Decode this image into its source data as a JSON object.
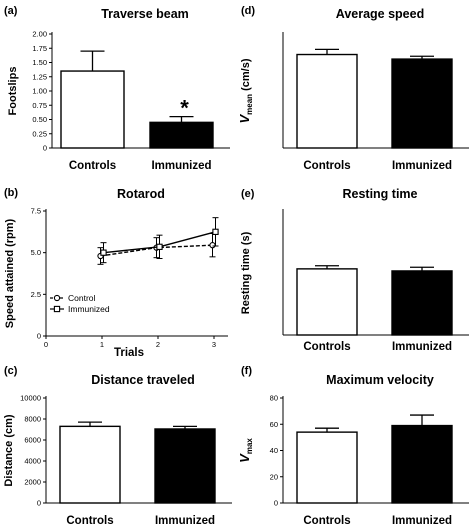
{
  "charts": [
    {
      "panel_label": "(a)",
      "type": "bar",
      "title": "Traverse beam",
      "ylabel": "Footslips",
      "xlabel": "",
      "categories": [
        "Controls",
        "Immunized"
      ],
      "values": [
        1.35,
        0.45
      ],
      "errors": [
        0.35,
        0.1
      ],
      "colors": [
        "#ffffff",
        "#000000"
      ],
      "ylim": [
        0,
        2.0
      ],
      "yticks": [
        "0",
        "0.25",
        "0.50",
        "0.75",
        "1.00",
        "1.25",
        "1.50",
        "1.75",
        "2.00"
      ],
      "significance": [
        "",
        "*"
      ]
    },
    {
      "panel_label": "(d)",
      "type": "bar",
      "title": "Average speed",
      "ylabel_main": "V",
      "ylabel_sub": "mean",
      "ylabel_unit": " (cm/s)",
      "xlabel": "",
      "categories": [
        "Controls",
        "Immunized"
      ],
      "values": [
        8.2,
        7.8
      ],
      "errors": [
        0.45,
        0.25
      ],
      "colors": [
        "#ffffff",
        "#000000"
      ],
      "ylim": [
        0,
        10
      ]
    },
    {
      "panel_label": "(b)",
      "type": "line",
      "title": "Rotarod",
      "ylabel": "Speed attained (rpm)",
      "xlabel": "Trials",
      "x": [
        1,
        2,
        3
      ],
      "xlim": [
        0,
        3.25
      ],
      "xticks": [
        "0",
        "1",
        "2",
        "3"
      ],
      "ylim": [
        0,
        7.5
      ],
      "yticks": [
        "0",
        "2.5",
        "5.0",
        "7.5"
      ],
      "series": [
        {
          "name": "Control",
          "values": [
            4.8,
            5.3,
            5.45
          ],
          "errors": [
            0.5,
            0.6,
            0.7
          ],
          "marker": "circle",
          "dash": true
        },
        {
          "name": "Immunized",
          "values": [
            5.0,
            5.35,
            6.25
          ],
          "errors": [
            0.6,
            0.7,
            0.85
          ],
          "marker": "square",
          "dash": false
        }
      ],
      "legend_position": "lower-left"
    },
    {
      "panel_label": "(e)",
      "type": "bar",
      "title": "Resting time",
      "ylabel": "Resting time (s)",
      "xlabel": "",
      "categories": [
        "Controls",
        "Immunized"
      ],
      "values": [
        320,
        310
      ],
      "errors": [
        15,
        18
      ],
      "colors": [
        "#ffffff",
        "#000000"
      ],
      "ylim": [
        0,
        600
      ]
    },
    {
      "panel_label": "(c)",
      "type": "bar",
      "title": "Distance traveled",
      "ylabel": "Distance (cm)",
      "xlabel": "",
      "categories": [
        "Controls",
        "Immunized"
      ],
      "values": [
        7300,
        7050
      ],
      "errors": [
        400,
        250
      ],
      "colors": [
        "#ffffff",
        "#000000"
      ],
      "ylim": [
        0,
        10000
      ],
      "yticks": [
        "0",
        "2000",
        "4000",
        "6000",
        "8000",
        "10000"
      ]
    },
    {
      "panel_label": "(f)",
      "type": "bar",
      "title": "Maximum velocity",
      "ylabel_main": "V",
      "ylabel_sub": "max",
      "ylabel_unit": "",
      "xlabel": "",
      "categories": [
        "Controls",
        "Immunized"
      ],
      "values": [
        54,
        59
      ],
      "errors": [
        3,
        8
      ],
      "colors": [
        "#ffffff",
        "#000000"
      ],
      "ylim": [
        0,
        80
      ],
      "yticks": [
        "0",
        "20",
        "40",
        "60",
        "80"
      ]
    }
  ]
}
